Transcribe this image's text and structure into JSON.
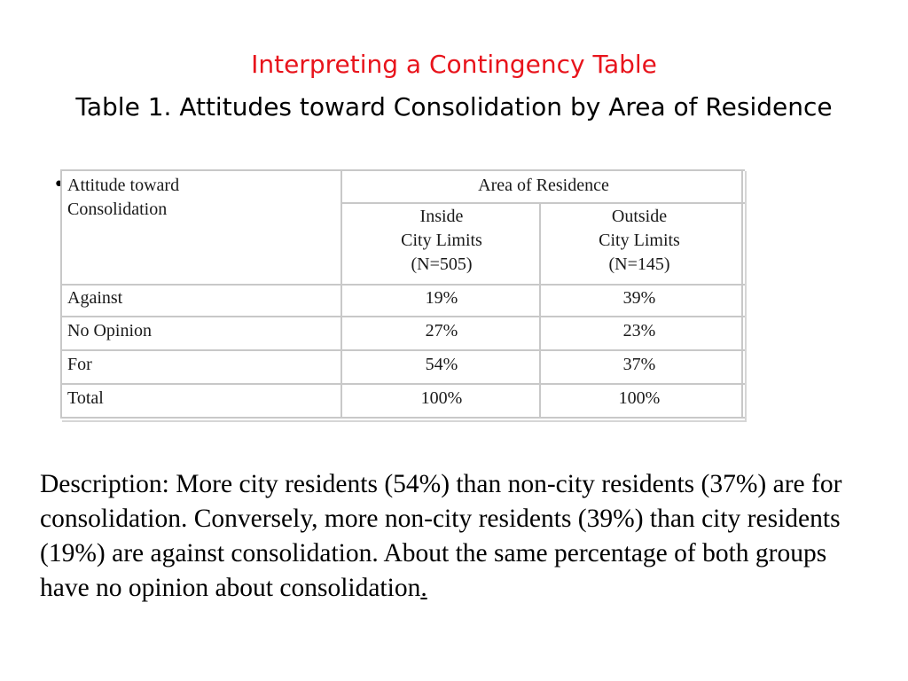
{
  "slide": {
    "title": "Interpreting a Contingency Table",
    "subtitle": "Table 1. Attitudes toward Consolidation by Area of Residence",
    "bullet": "•"
  },
  "table": {
    "row_header": [
      "Attitude toward",
      "Consolidation"
    ],
    "group_header": "Area of Residence",
    "columns": [
      {
        "line1": "Inside",
        "line2": "City Limits",
        "line3": "(N=505)"
      },
      {
        "line1": "Outside",
        "line2": "City Limits",
        "line3": "(N=145)"
      }
    ],
    "rows": [
      {
        "label": "Against",
        "values": [
          "19%",
          "39%"
        ]
      },
      {
        "label": "No Opinion",
        "values": [
          "27%",
          "23%"
        ]
      },
      {
        "label": "For",
        "values": [
          "54%",
          "37%"
        ]
      },
      {
        "label": "Total",
        "values": [
          "100%",
          "100%"
        ]
      }
    ]
  },
  "description": {
    "text": "Description: More city residents (54%) than non-city residents (37%) are for consolidation. Conversely, more non-city residents (39%) than city residents (19%) are against consolidation. About the same percentage of both groups have no opinion about consolidation",
    "end_mark": "."
  }
}
